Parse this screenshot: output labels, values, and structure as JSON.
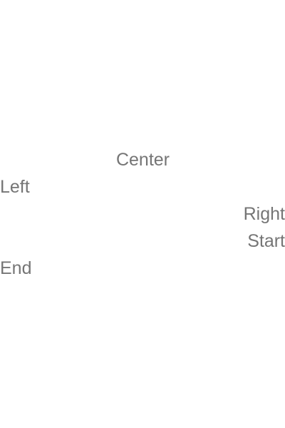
{
  "labels": {
    "center": "Center",
    "left": "Left",
    "right": "Right",
    "start": "Start",
    "end": "End"
  },
  "colors": {
    "text": "#757575",
    "background": "#ffffff"
  }
}
